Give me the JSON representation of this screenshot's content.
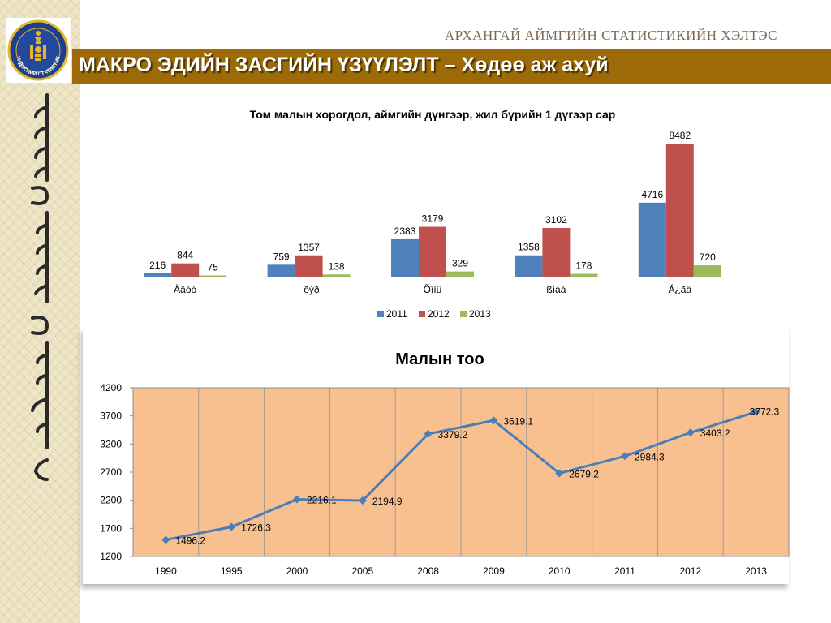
{
  "header": {
    "org_name": "АРХАНГАЙ АЙМГИЙН СТАТИСТИКИЙН ХЭЛТЭС",
    "slide_title": "МАКРО ЭДИЙН ЗАСГИЙН ҮЗҮҮЛЭЛТ – Хөдөө аж ахуй",
    "logo_text": "ҮНДЭСНИЙ СТАТИСТИК"
  },
  "colors": {
    "banner": "#9c6a07",
    "series_2011": "#4f81bd",
    "series_2012": "#c0504d",
    "series_2013": "#9bbb59",
    "line": "#4a7ebb",
    "plot_bg": "#f8c08f"
  },
  "chart_data": [
    {
      "type": "bar",
      "title": "Том малын хорогдол, аймгийн дүнгээр, жил бүрийн 1 дүгээр сар",
      "categories": [
        "Àäóó",
        "¯õýð",
        "Õîíü",
        "ßìàà",
        "Á¿ãä"
      ],
      "series": [
        {
          "name": "2011",
          "values": [
            216,
            759,
            2383,
            1358,
            4716
          ]
        },
        {
          "name": "2012",
          "values": [
            844,
            1357,
            3179,
            3102,
            8482
          ]
        },
        {
          "name": "2013",
          "values": [
            75,
            138,
            329,
            178,
            720
          ]
        }
      ],
      "ylim": [
        0,
        8482
      ],
      "legend": "bottom",
      "grid": false
    },
    {
      "type": "line",
      "title": "Малын тоо",
      "x": [
        "1990",
        "1995",
        "2000",
        "2005",
        "2008",
        "2009",
        "2010",
        "2011",
        "2012",
        "2013"
      ],
      "series": [
        {
          "values": [
            1496.2,
            1726.3,
            2216.1,
            2194.9,
            3379.2,
            3619.1,
            2679.2,
            2984.3,
            3403.2,
            3772.3
          ]
        }
      ],
      "ylim": [
        1200,
        4200
      ],
      "yticks": [
        1200,
        1700,
        2200,
        2700,
        3200,
        3700,
        4200
      ],
      "grid": true,
      "legend": "none"
    }
  ]
}
